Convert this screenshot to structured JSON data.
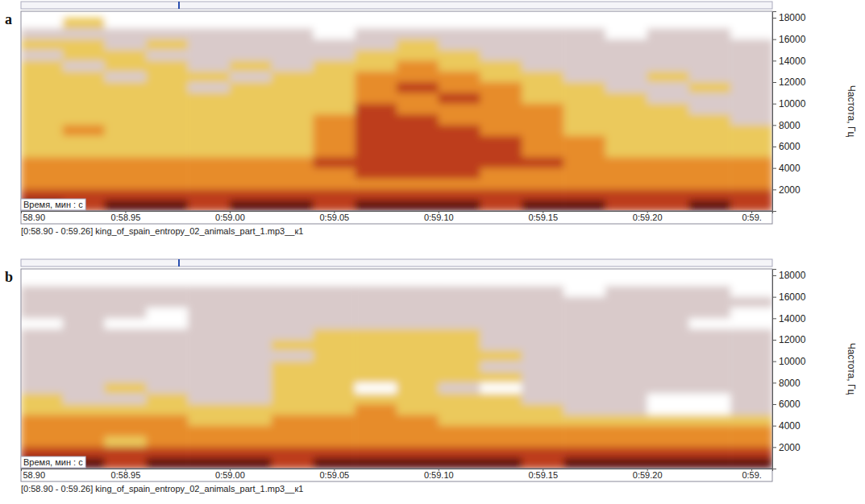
{
  "chart_data": [
    {
      "type": "heatmap",
      "title": "a",
      "x_label": "Время, мин : с",
      "y_label": "Частота, Гц",
      "caption": "[0:58.90 - 0:59.26] king_of_spain_entropy_02_animals_part_1.mp3__к1",
      "xlim": [
        58.9,
        59.26
      ],
      "ylim": [
        0,
        18600
      ],
      "xticks": [
        {
          "value": 58.9,
          "label": "58.90"
        },
        {
          "value": 58.95,
          "label": "0:58.95"
        },
        {
          "value": 59.0,
          "label": "0:59.00"
        },
        {
          "value": 59.05,
          "label": "0:59.05"
        },
        {
          "value": 59.1,
          "label": "0:59.10"
        },
        {
          "value": 59.15,
          "label": "0:59.15"
        },
        {
          "value": 59.2,
          "label": "0:59.20"
        },
        {
          "value": 59.25,
          "label": "0:59."
        }
      ],
      "yticks": [
        2000,
        4000,
        6000,
        8000,
        10000,
        12000,
        14000,
        16000,
        18000
      ],
      "zlim": [
        0,
        5
      ],
      "x_edges": [
        58.9,
        58.92,
        58.94,
        58.96,
        58.98,
        59.0,
        59.02,
        59.04,
        59.06,
        59.08,
        59.1,
        59.12,
        59.14,
        59.16,
        59.18,
        59.2,
        59.22,
        59.24,
        59.26
      ],
      "y_edges": [
        18000,
        17000,
        16000,
        15000,
        14000,
        13000,
        12000,
        11000,
        10000,
        9000,
        8000,
        7000,
        6000,
        5000,
        4000,
        3000,
        2000,
        1000,
        0
      ],
      "cells": [
        [
          0,
          2,
          0,
          0,
          0,
          0,
          0,
          0,
          0,
          0,
          0,
          0,
          0,
          0,
          0,
          0,
          0,
          0
        ],
        [
          1,
          1,
          1,
          1,
          1,
          1,
          1,
          0,
          1,
          1,
          1,
          1,
          1,
          1,
          0,
          1,
          1,
          0
        ],
        [
          2,
          2,
          1,
          2,
          1,
          1,
          1,
          1,
          1,
          2,
          1,
          1,
          1,
          1,
          1,
          1,
          1,
          1
        ],
        [
          1,
          2,
          2,
          1,
          1,
          1,
          1,
          1,
          2,
          2,
          2,
          1,
          1,
          1,
          1,
          1,
          1,
          1
        ],
        [
          2,
          1,
          2,
          2,
          1,
          2,
          1,
          2,
          2,
          3,
          2,
          2,
          1,
          1,
          1,
          1,
          1,
          1
        ],
        [
          2,
          2,
          1,
          2,
          2,
          1,
          2,
          2,
          3,
          3,
          3,
          2,
          2,
          1,
          1,
          2,
          1,
          1
        ],
        [
          2,
          2,
          2,
          2,
          1,
          2,
          2,
          2,
          3,
          4,
          3,
          3,
          2,
          2,
          1,
          1,
          2,
          1
        ],
        [
          2,
          2,
          2,
          2,
          2,
          2,
          2,
          2,
          3,
          3,
          4,
          3,
          2,
          2,
          2,
          1,
          1,
          1
        ],
        [
          2,
          2,
          2,
          2,
          2,
          2,
          2,
          2,
          4,
          3,
          3,
          3,
          3,
          2,
          2,
          2,
          1,
          1
        ],
        [
          2,
          2,
          2,
          2,
          2,
          2,
          2,
          3,
          4,
          4,
          3,
          3,
          3,
          2,
          2,
          2,
          2,
          1
        ],
        [
          2,
          3,
          2,
          2,
          2,
          2,
          2,
          3,
          4,
          4,
          4,
          3,
          3,
          2,
          2,
          2,
          2,
          2
        ],
        [
          2,
          2,
          2,
          2,
          2,
          2,
          2,
          3,
          4,
          4,
          4,
          4,
          3,
          3,
          2,
          2,
          2,
          2
        ],
        [
          2,
          2,
          2,
          2,
          2,
          2,
          2,
          3,
          4,
          4,
          4,
          4,
          3,
          3,
          2,
          2,
          2,
          2
        ],
        [
          3,
          3,
          3,
          3,
          3,
          3,
          3,
          4,
          4,
          4,
          4,
          4,
          4,
          3,
          3,
          3,
          3,
          3
        ],
        [
          3,
          3,
          3,
          3,
          3,
          3,
          3,
          3,
          4,
          4,
          4,
          3,
          3,
          3,
          3,
          3,
          3,
          3
        ],
        [
          3,
          3,
          3,
          3,
          3,
          3,
          3,
          3,
          3,
          3,
          3,
          3,
          3,
          3,
          3,
          3,
          3,
          3
        ],
        [
          4,
          4,
          4,
          4,
          4,
          4,
          4,
          4,
          4,
          4,
          4,
          4,
          4,
          4,
          4,
          4,
          4,
          4
        ],
        [
          5,
          4,
          5,
          5,
          4,
          5,
          5,
          4,
          5,
          5,
          5,
          4,
          5,
          5,
          4,
          4,
          5,
          4
        ]
      ]
    },
    {
      "type": "heatmap",
      "title": "b",
      "x_label": "Время, мин : с",
      "y_label": "Частота, Гц",
      "caption": "[0:58.90 - 0:59.26] king_of_spain_entropy_02_animals_part_1.mp3__к1",
      "xlim": [
        58.9,
        59.26
      ],
      "ylim": [
        0,
        18600
      ],
      "xticks": [
        {
          "value": 58.9,
          "label": "58.90"
        },
        {
          "value": 58.95,
          "label": "0:58.95"
        },
        {
          "value": 59.0,
          "label": "0:59.00"
        },
        {
          "value": 59.05,
          "label": "0:59.05"
        },
        {
          "value": 59.1,
          "label": "0:59.10"
        },
        {
          "value": 59.15,
          "label": "0:59.15"
        },
        {
          "value": 59.2,
          "label": "0:59.20"
        },
        {
          "value": 59.25,
          "label": "0:59."
        }
      ],
      "yticks": [
        2000,
        4000,
        6000,
        8000,
        10000,
        12000,
        14000,
        16000,
        18000
      ],
      "zlim": [
        0,
        5
      ],
      "x_edges": [
        58.9,
        58.92,
        58.94,
        58.96,
        58.98,
        59.0,
        59.02,
        59.04,
        59.06,
        59.08,
        59.1,
        59.12,
        59.14,
        59.16,
        59.18,
        59.2,
        59.22,
        59.24,
        59.26
      ],
      "y_edges": [
        18000,
        17000,
        16000,
        15000,
        14000,
        13000,
        12000,
        11000,
        10000,
        9000,
        8000,
        7000,
        6000,
        5000,
        4000,
        3000,
        2000,
        1000,
        0
      ],
      "cells": [
        [
          0,
          0,
          0,
          0,
          0,
          0,
          0,
          0,
          0,
          0,
          0,
          0,
          0,
          0,
          0,
          0,
          0,
          0
        ],
        [
          1,
          1,
          1,
          1,
          1,
          1,
          1,
          1,
          1,
          1,
          1,
          1,
          1,
          0,
          1,
          1,
          1,
          0
        ],
        [
          1,
          1,
          1,
          1,
          1,
          1,
          1,
          1,
          1,
          1,
          1,
          1,
          1,
          1,
          1,
          1,
          1,
          1
        ],
        [
          1,
          1,
          1,
          0,
          1,
          1,
          1,
          1,
          1,
          1,
          1,
          1,
          1,
          1,
          1,
          1,
          1,
          0
        ],
        [
          0,
          1,
          0,
          0,
          1,
          1,
          1,
          1,
          1,
          1,
          1,
          1,
          1,
          1,
          1,
          1,
          0,
          0
        ],
        [
          1,
          1,
          1,
          1,
          1,
          1,
          1,
          2,
          2,
          2,
          2,
          1,
          1,
          1,
          1,
          1,
          1,
          1
        ],
        [
          1,
          1,
          1,
          1,
          1,
          1,
          2,
          2,
          2,
          2,
          2,
          1,
          1,
          1,
          1,
          1,
          1,
          1
        ],
        [
          1,
          1,
          1,
          1,
          1,
          1,
          1,
          2,
          2,
          2,
          2,
          2,
          1,
          1,
          1,
          1,
          1,
          1
        ],
        [
          1,
          1,
          1,
          1,
          1,
          1,
          2,
          2,
          2,
          2,
          2,
          1,
          1,
          1,
          1,
          1,
          1,
          1
        ],
        [
          1,
          1,
          1,
          1,
          1,
          1,
          2,
          2,
          2,
          2,
          2,
          2,
          1,
          1,
          1,
          1,
          1,
          1
        ],
        [
          1,
          1,
          2,
          1,
          1,
          1,
          2,
          2,
          0,
          2,
          1,
          0,
          1,
          1,
          1,
          1,
          1,
          1
        ],
        [
          2,
          1,
          1,
          2,
          1,
          1,
          2,
          2,
          2,
          2,
          2,
          2,
          1,
          1,
          1,
          0,
          0,
          1
        ],
        [
          2,
          2,
          2,
          2,
          2,
          2,
          2,
          2,
          3,
          2,
          2,
          2,
          2,
          1,
          1,
          0,
          0,
          1
        ],
        [
          3,
          3,
          3,
          3,
          2,
          2,
          3,
          3,
          3,
          3,
          2,
          2,
          2,
          2,
          2,
          2,
          2,
          2
        ],
        [
          3,
          3,
          3,
          3,
          3,
          3,
          3,
          3,
          3,
          3,
          3,
          3,
          3,
          3,
          3,
          3,
          3,
          3
        ],
        [
          3,
          3,
          2,
          3,
          3,
          3,
          3,
          3,
          3,
          3,
          3,
          3,
          3,
          3,
          3,
          3,
          3,
          3
        ],
        [
          4,
          4,
          4,
          4,
          4,
          4,
          4,
          4,
          4,
          4,
          4,
          4,
          4,
          4,
          4,
          4,
          4,
          4
        ],
        [
          5,
          5,
          4,
          5,
          5,
          5,
          4,
          5,
          5,
          5,
          5,
          5,
          4,
          5,
          5,
          5,
          5,
          5
        ]
      ]
    }
  ]
}
